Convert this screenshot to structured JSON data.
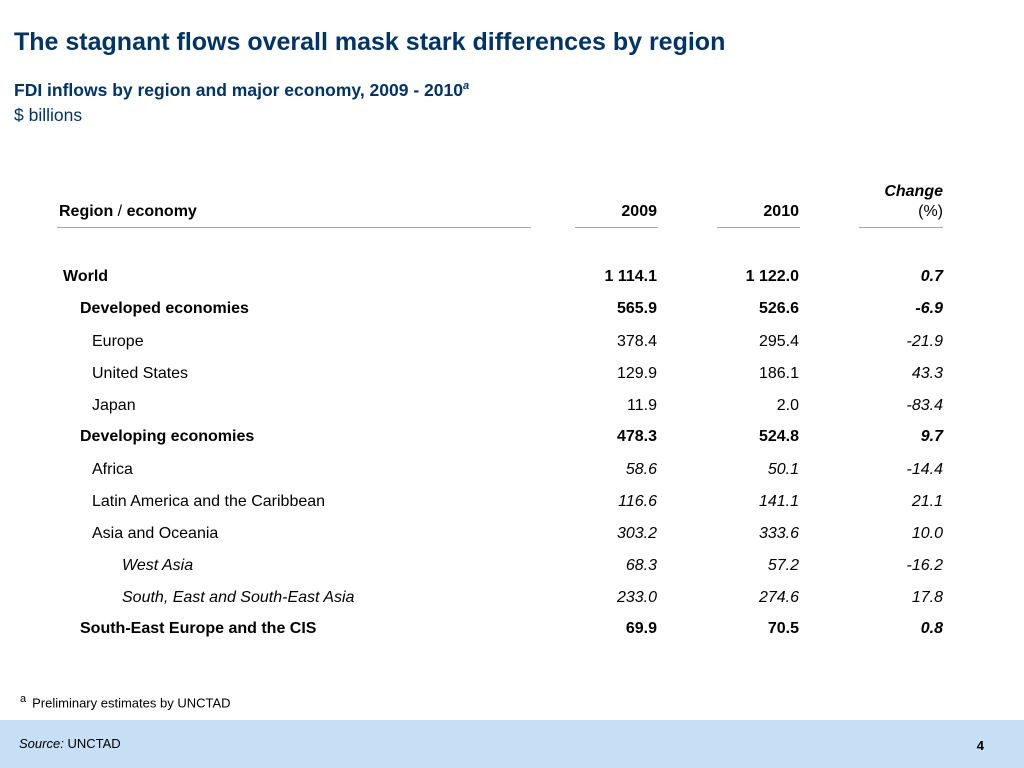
{
  "title": "The stagnant flows overall mask stark differences by region",
  "subtitle": "FDI inflows by region and major economy, 2009 - 2010",
  "subtitle_footnote_mark": "a",
  "unit": "$ billions",
  "table": {
    "header": {
      "region": "Region",
      "slash": "/",
      "economy": "economy",
      "y2009": "2009",
      "y2010": "2010",
      "change": "Change",
      "change_unit": "(%)"
    },
    "rows": [
      {
        "name": "World",
        "v2009": "1 114.1",
        "v2010": "1 122.0",
        "change": "0.7"
      },
      {
        "name": "Developed economies",
        "v2009": "565.9",
        "v2010": "526.6",
        "change": "-6.9"
      },
      {
        "name": "Europe",
        "v2009": "378.4",
        "v2010": "295.4",
        "change": "-21.9"
      },
      {
        "name": "United States",
        "v2009": "129.9",
        "v2010": "186.1",
        "change": "43.3"
      },
      {
        "name": "Japan",
        "v2009": "11.9",
        "v2010": "2.0",
        "change": "-83.4"
      },
      {
        "name": "Developing economies",
        "v2009": "478.3",
        "v2010": "524.8",
        "change": "9.7"
      },
      {
        "name": "Africa",
        "v2009": "58.6",
        "v2010": "50.1",
        "change": "-14.4"
      },
      {
        "name": "Latin America and the Caribbean",
        "v2009": "116.6",
        "v2010": "141.1",
        "change": "21.1"
      },
      {
        "name": "Asia and Oceania",
        "v2009": "303.2",
        "v2010": "333.6",
        "change": "10.0"
      },
      {
        "name": "West Asia",
        "v2009": "68.3",
        "v2010": "57.2",
        "change": "-16.2"
      },
      {
        "name": "South, East and South-East Asia",
        "v2009": "233.0",
        "v2010": "274.6",
        "change": "17.8"
      },
      {
        "name": "South-East Europe and the CIS",
        "v2009": "69.9",
        "v2010": "70.5",
        "change": "0.8"
      }
    ]
  },
  "footnote": {
    "mark": "a",
    "text": "Preliminary estimates by UNCTAD"
  },
  "source": {
    "label": "Source:",
    "text": "UNCTAD"
  },
  "page_number": "4",
  "colors": {
    "title": "#003366",
    "footer_band": "#c6dff5",
    "rule": "#a6a6a6"
  }
}
